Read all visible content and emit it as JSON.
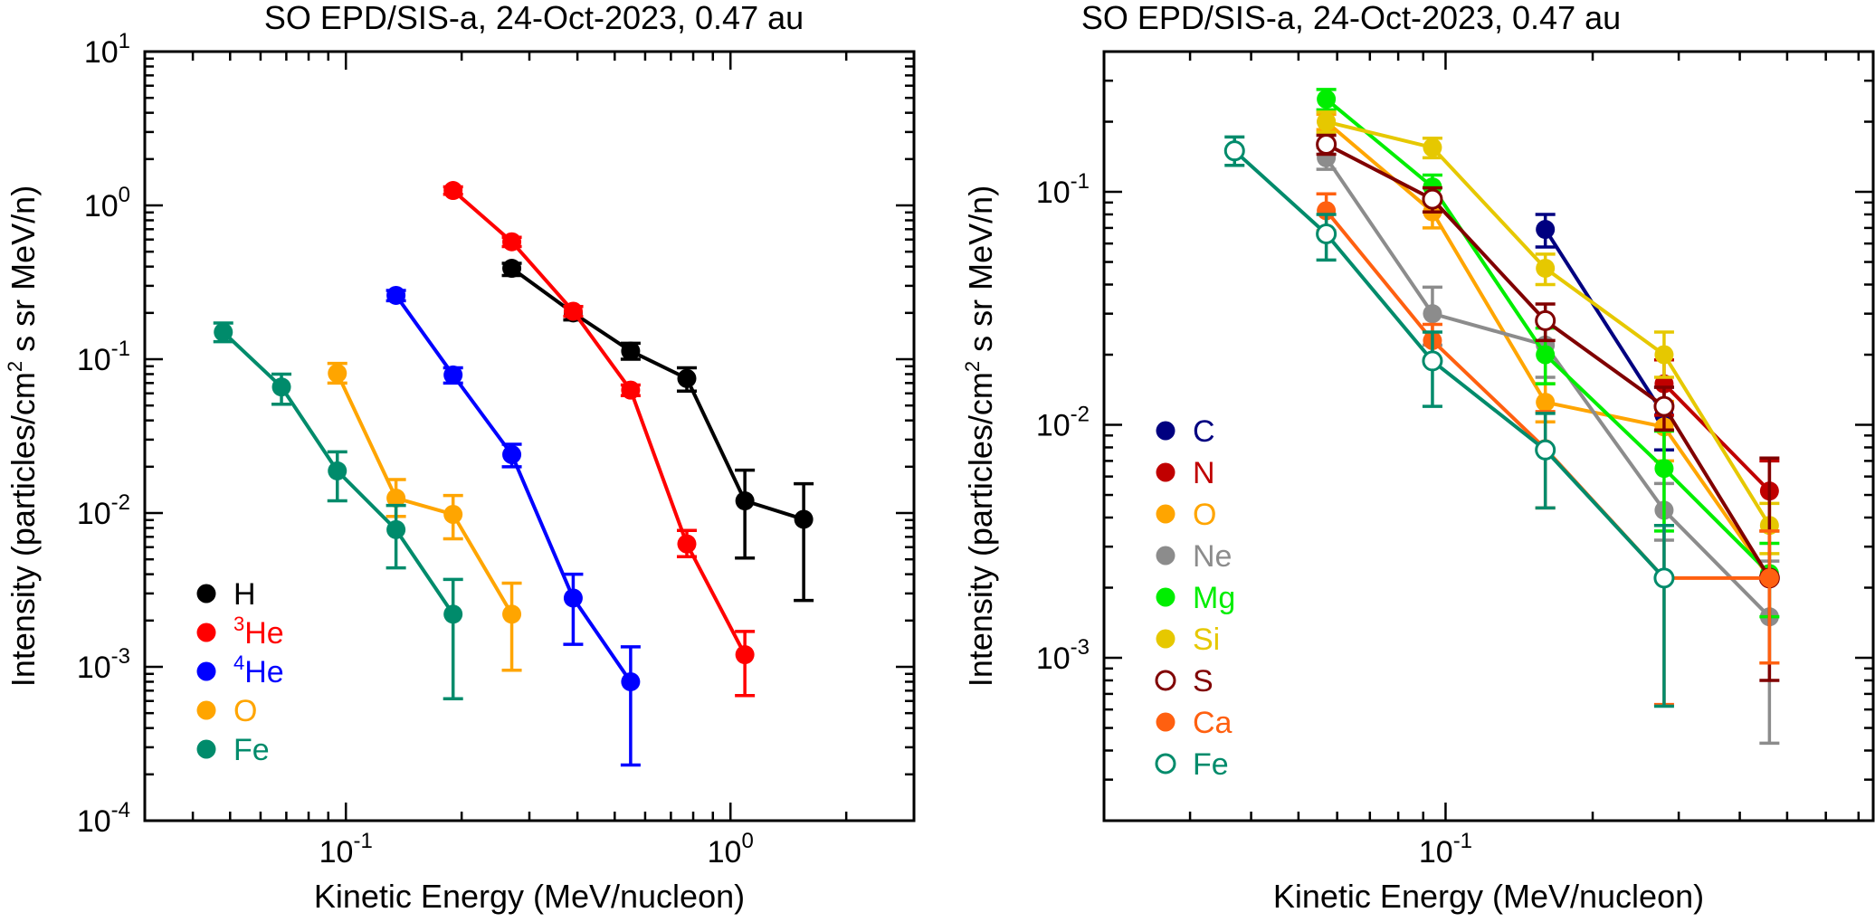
{
  "chart_data": [
    {
      "type": "scatter",
      "title": "SO EPD/SIS-a, 24-Oct-2023, 0.47 au",
      "xlabel": "Kinetic Energy (MeV/nucleon)",
      "ylabel_parts": [
        "Intensity (particles/cm",
        "2",
        " s sr MeV/n)"
      ],
      "xscale": "log",
      "yscale": "log",
      "xlim": [
        0.03,
        3.0
      ],
      "ylim": [
        0.0001,
        10
      ],
      "x_ticks": [
        {
          "value": 0.1,
          "base": "10",
          "exp": "-1"
        },
        {
          "value": 1,
          "base": "10",
          "exp": "0"
        }
      ],
      "y_ticks": [
        {
          "value": 0.0001,
          "base": "10",
          "exp": "-4"
        },
        {
          "value": 0.001,
          "base": "10",
          "exp": "-3"
        },
        {
          "value": 0.01,
          "base": "10",
          "exp": "-2"
        },
        {
          "value": 0.1,
          "base": "10",
          "exp": "-1"
        },
        {
          "value": 1,
          "base": "10",
          "exp": "0"
        },
        {
          "value": 10,
          "base": "10",
          "exp": "1"
        }
      ],
      "legend_placement": "bottom-left",
      "series": [
        {
          "name": "H",
          "name_sup": "",
          "color": "#000000",
          "marker": "filled",
          "x": [
            0.27,
            0.39,
            0.55,
            0.77,
            1.09,
            1.55
          ],
          "y": [
            0.39,
            0.2,
            0.113,
            0.075,
            0.012,
            0.0091
          ],
          "err_lo": [
            0.35,
            0.18,
            0.1,
            0.062,
            0.0051,
            0.0027
          ],
          "err_hi": [
            0.42,
            0.22,
            0.127,
            0.088,
            0.019,
            0.0155
          ]
        },
        {
          "name": "He",
          "name_sup": "3",
          "color": "#ff0000",
          "marker": "filled",
          "x": [
            0.19,
            0.27,
            0.39,
            0.55,
            0.77,
            1.09
          ],
          "y": [
            1.25,
            0.58,
            0.205,
            0.063,
            0.0063,
            0.0012
          ],
          "err_lo": [
            1.18,
            0.54,
            0.19,
            0.058,
            0.0052,
            0.00065
          ],
          "err_hi": [
            1.32,
            0.62,
            0.22,
            0.068,
            0.0077,
            0.0017
          ]
        },
        {
          "name": "He",
          "name_sup": "4",
          "color": "#0000ff",
          "marker": "filled",
          "x": [
            0.135,
            0.19,
            0.27,
            0.39,
            0.55
          ],
          "y": [
            0.26,
            0.079,
            0.024,
            0.0028,
            0.0008
          ],
          "err_lo": [
            0.24,
            0.07,
            0.02,
            0.0014,
            0.00023
          ],
          "err_hi": [
            0.28,
            0.088,
            0.028,
            0.004,
            0.00135
          ]
        },
        {
          "name": "O",
          "name_sup": "",
          "color": "#ffa500",
          "marker": "filled",
          "x": [
            0.095,
            0.135,
            0.19,
            0.27
          ],
          "y": [
            0.081,
            0.0125,
            0.0098,
            0.0022
          ],
          "err_lo": [
            0.07,
            0.0095,
            0.0068,
            0.00095
          ],
          "err_hi": [
            0.094,
            0.0165,
            0.013,
            0.0035
          ]
        },
        {
          "name": "Fe",
          "name_sup": "",
          "color": "#008b6b",
          "marker": "filled",
          "x": [
            0.048,
            0.068,
            0.095,
            0.135,
            0.19
          ],
          "y": [
            0.15,
            0.066,
            0.0188,
            0.0078,
            0.0022
          ],
          "err_lo": [
            0.13,
            0.051,
            0.012,
            0.0044,
            0.00062
          ],
          "err_hi": [
            0.172,
            0.08,
            0.025,
            0.0112,
            0.0037
          ]
        }
      ]
    },
    {
      "type": "scatter",
      "title": "SO EPD/SIS-a, 24-Oct-2023, 0.47 au",
      "xlabel": "Kinetic Energy (MeV/nucleon)",
      "ylabel_parts": [
        "Intensity (particles/cm",
        "2",
        " s sr MeV/n)"
      ],
      "xscale": "log",
      "yscale": "log",
      "xlim": [
        0.02,
        0.75
      ],
      "ylim": [
        0.0002,
        0.4
      ],
      "x_ticks": [
        {
          "value": 0.1,
          "base": "10",
          "exp": "-1"
        }
      ],
      "y_ticks": [
        {
          "value": 0.001,
          "base": "10",
          "exp": "-3"
        },
        {
          "value": 0.01,
          "base": "10",
          "exp": "-2"
        },
        {
          "value": 0.1,
          "base": "10",
          "exp": "-1"
        }
      ],
      "legend_placement": "bottom-left",
      "series": [
        {
          "name": "C",
          "color": "#000080",
          "marker": "filled",
          "x": [
            0.16,
            0.28
          ],
          "y": [
            0.069,
            0.011
          ],
          "err_lo": [
            0.058,
            0.0078
          ],
          "err_hi": [
            0.08,
            0.0145
          ]
        },
        {
          "name": "N",
          "color": "#c00000",
          "marker": "filled",
          "x": [
            0.28,
            0.46
          ],
          "y": [
            0.015,
            0.0052
          ],
          "err_lo": [
            0.011,
            0.0035
          ],
          "err_hi": [
            0.019,
            0.007
          ]
        },
        {
          "name": "O",
          "color": "#ffa500",
          "marker": "filled",
          "x": [
            0.057,
            0.094,
            0.16,
            0.28,
            0.46
          ],
          "y": [
            0.2,
            0.082,
            0.0125,
            0.0098,
            0.0022
          ],
          "err_lo": [
            0.185,
            0.07,
            0.0103,
            0.007,
            0.00095
          ],
          "err_hi": [
            0.215,
            0.095,
            0.015,
            0.0126,
            0.0035
          ]
        },
        {
          "name": "Ne",
          "color": "#8c8c8c",
          "marker": "filled",
          "x": [
            0.057,
            0.094,
            0.16,
            0.28,
            0.46
          ],
          "y": [
            0.14,
            0.03,
            0.022,
            0.0043,
            0.0015
          ],
          "err_lo": [
            0.125,
            0.022,
            0.016,
            0.0032,
            0.00043
          ],
          "err_hi": [
            0.155,
            0.039,
            0.028,
            0.0056,
            0.0026
          ]
        },
        {
          "name": "Mg",
          "color": "#00ee00",
          "marker": "filled",
          "x": [
            0.057,
            0.094,
            0.16,
            0.28,
            0.46
          ],
          "y": [
            0.25,
            0.105,
            0.02,
            0.0065,
            0.0023
          ],
          "err_lo": [
            0.225,
            0.092,
            0.015,
            0.0035,
            0.0015
          ],
          "err_hi": [
            0.275,
            0.118,
            0.026,
            0.0094,
            0.0031
          ]
        },
        {
          "name": "Si",
          "color": "#e6c800",
          "marker": "filled",
          "x": [
            0.057,
            0.094,
            0.16,
            0.28,
            0.46
          ],
          "y": [
            0.2,
            0.155,
            0.047,
            0.02,
            0.0037
          ],
          "err_lo": [
            0.18,
            0.14,
            0.04,
            0.016,
            0.0028
          ],
          "err_hi": [
            0.22,
            0.17,
            0.054,
            0.025,
            0.0046
          ]
        },
        {
          "name": "S",
          "color": "#800000",
          "marker": "open",
          "x": [
            0.057,
            0.094,
            0.16,
            0.28,
            0.46
          ],
          "y": [
            0.16,
            0.093,
            0.028,
            0.012,
            0.0022
          ],
          "err_lo": [
            0.145,
            0.082,
            0.023,
            0.0095,
            0.0008
          ],
          "err_hi": [
            0.175,
            0.104,
            0.033,
            0.0145,
            0.0072
          ]
        },
        {
          "name": "Ca",
          "color": "#ff6010",
          "marker": "filled",
          "x": [
            0.057,
            0.094,
            0.16,
            0.28,
            0.46
          ],
          "y": [
            0.083,
            0.023,
            0.0079,
            0.0022,
            0.0022
          ],
          "err_lo": [
            0.068,
            0.019,
            0.0044,
            0.00063,
            0.00095
          ],
          "err_hi": [
            0.098,
            0.027,
            0.0114,
            0.0037,
            0.0035
          ]
        },
        {
          "name": "Fe",
          "color": "#008b6b",
          "marker": "open",
          "x": [
            0.037,
            0.057,
            0.094,
            0.16,
            0.28
          ],
          "y": [
            0.15,
            0.066,
            0.0188,
            0.0078,
            0.0022
          ],
          "err_lo": [
            0.13,
            0.051,
            0.012,
            0.0044,
            0.00062
          ],
          "err_hi": [
            0.172,
            0.08,
            0.025,
            0.0112,
            0.0037
          ]
        }
      ]
    }
  ]
}
